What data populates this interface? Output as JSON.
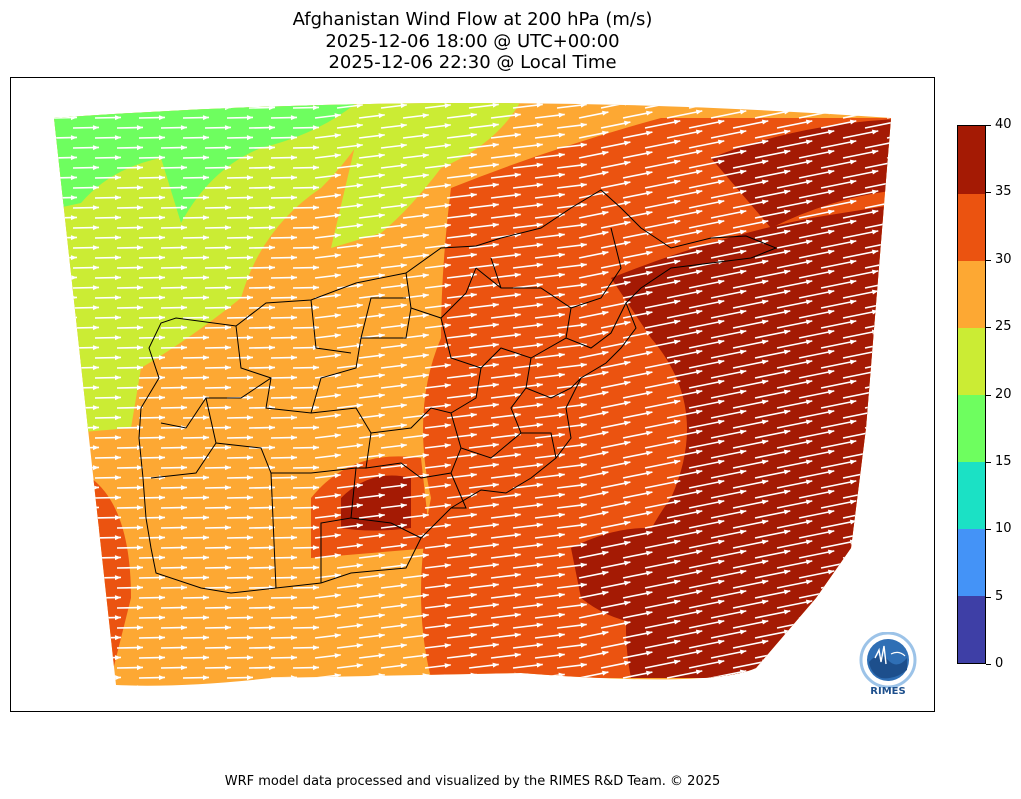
{
  "title": {
    "line1": "Afghanistan Wind Flow at 200 hPa (m/s)",
    "line2": "2025-12-06 18:00 @ UTC+00:00",
    "line3": "2025-12-06 22:30 @ Local Time"
  },
  "colorbar": {
    "ticks": [
      "0",
      "5",
      "10",
      "15",
      "20",
      "25",
      "30",
      "35",
      "40"
    ],
    "colors": [
      "#3e3fa6",
      "#4493f7",
      "#1be1c5",
      "#6efe5f",
      "#cbec34",
      "#fda833",
      "#eb5310",
      "#a41a04"
    ]
  },
  "footer": "WRF model data processed and visualized by the RIMES R&D Team. © 2025",
  "logo": {
    "text": "RIMES",
    "icon": "rimes-globe-logo-icon"
  }
}
